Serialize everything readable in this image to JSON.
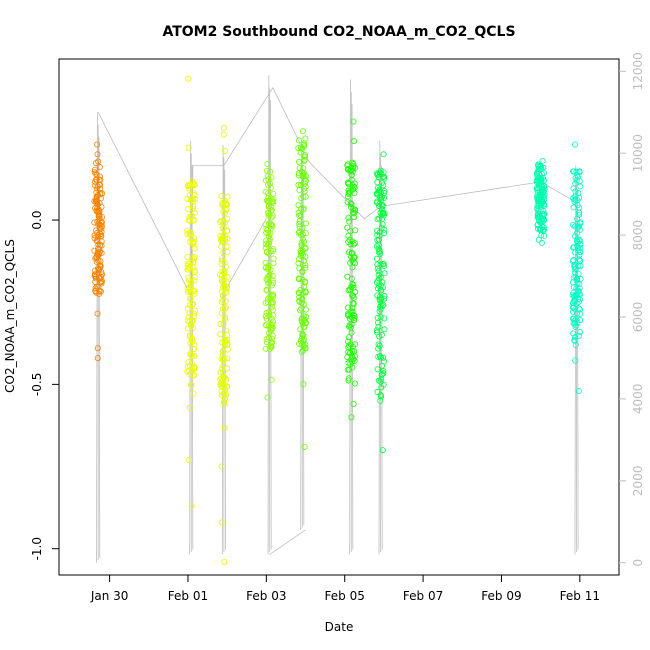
{
  "chart_data": {
    "type": "scatter",
    "title": "ATOM2 Southbound CO2_NOAA_m_CO2_QCLS",
    "xlabel": "Date",
    "ylabel": "CO2_NOAA_m_CO2_QCLS",
    "xlim": [
      "2017-01-28T17:00",
      "2017-02-12T00:00"
    ],
    "ylim": [
      -1.08,
      0.49
    ],
    "y2lim": [
      -300,
      12300
    ],
    "x_ticks": [
      {
        "at": "2017-01-30",
        "label": "Jan 30"
      },
      {
        "at": "2017-02-01",
        "label": "Feb 01"
      },
      {
        "at": "2017-02-03",
        "label": "Feb 03"
      },
      {
        "at": "2017-02-05",
        "label": "Feb 05"
      },
      {
        "at": "2017-02-07",
        "label": "Feb 07"
      },
      {
        "at": "2017-02-09",
        "label": "Feb 09"
      },
      {
        "at": "2017-02-11",
        "label": "Feb 11"
      }
    ],
    "y_ticks": [
      {
        "v": -1.0,
        "label": "-1.0"
      },
      {
        "v": -0.5,
        "label": "-0.5"
      },
      {
        "v": 0.0,
        "label": "0.0"
      }
    ],
    "y2_ticks": [
      {
        "v": 0,
        "label": "0"
      },
      {
        "v": 2000,
        "label": "2000"
      },
      {
        "v": 4000,
        "label": "4000"
      },
      {
        "v": 6000,
        "label": "6000"
      },
      {
        "v": 8000,
        "label": "8000"
      },
      {
        "v": 10000,
        "label": "10000"
      },
      {
        "v": 12000,
        "label": "12000"
      }
    ],
    "grid": false,
    "flights": [
      {
        "time": "2017-01-29T17:00",
        "color": "#f58300",
        "ymin": -0.42,
        "ymax": 0.23,
        "core_min": -0.3,
        "core_max": 0.18,
        "outliers": [
          0.23,
          0.2,
          -0.42,
          -0.39
        ]
      },
      {
        "time": "2017-02-01T02:00",
        "color": "#ebff00",
        "ymin": -0.87,
        "ymax": 0.43,
        "core_min": -0.58,
        "core_max": 0.13,
        "outliers": [
          0.43,
          0.22,
          -0.73,
          -0.87
        ]
      },
      {
        "time": "2017-02-01T22:00",
        "color": "#e2ff00",
        "ymin": -1.04,
        "ymax": 0.28,
        "core_min": -0.67,
        "core_max": 0.09,
        "outliers": [
          0.28,
          0.26,
          0.21,
          -0.75,
          -0.92,
          -1.04
        ]
      },
      {
        "time": "2017-02-03T02:00",
        "color": "#8dff00",
        "ymin": -0.54,
        "ymax": 0.17,
        "core_min": -0.49,
        "core_max": 0.15,
        "outliers": [
          0.17,
          -0.54
        ]
      },
      {
        "time": "2017-02-03T22:00",
        "color": "#66ff00",
        "ymin": -0.69,
        "ymax": 0.27,
        "core_min": -0.52,
        "core_max": 0.25,
        "outliers": [
          0.27,
          -0.69
        ]
      },
      {
        "time": "2017-02-05T04:00",
        "color": "#1cff00",
        "ymin": -0.6,
        "ymax": 0.3,
        "core_min": -0.57,
        "core_max": 0.18,
        "outliers": [
          0.3,
          0.24,
          -0.6
        ]
      },
      {
        "time": "2017-02-05T22:00",
        "color": "#00ff3f",
        "ymin": -0.7,
        "ymax": 0.2,
        "core_min": -0.62,
        "core_max": 0.16,
        "outliers": [
          0.2,
          -0.7
        ]
      },
      {
        "time": "2017-02-10T00:00",
        "color": "#00ffad",
        "ymin": -0.08,
        "ymax": 0.18,
        "core_min": -0.07,
        "core_max": 0.17,
        "outliers": [
          0.18
        ]
      },
      {
        "time": "2017-02-10T22:00",
        "color": "#00ffc4",
        "ymin": -0.52,
        "ymax": 0.23,
        "core_min": -0.46,
        "core_max": 0.15,
        "outliers": [
          0.23,
          -0.52
        ]
      }
    ],
    "altitude_series": {
      "color": "#bdbdbd",
      "axis": "right",
      "vertical_profiles": [
        {
          "time": "2017-01-29T17:00",
          "lo": 0,
          "hi": 11000
        },
        {
          "time": "2017-02-01T02:00",
          "lo": 200,
          "hi": 10300
        },
        {
          "time": "2017-02-01T22:00",
          "lo": 200,
          "hi": 10200
        },
        {
          "time": "2017-02-03T02:00",
          "lo": 200,
          "hi": 11900
        },
        {
          "time": "2017-02-03T22:00",
          "lo": 800,
          "hi": 10200
        },
        {
          "time": "2017-02-05T04:00",
          "lo": 200,
          "hi": 11800
        },
        {
          "time": "2017-02-05T22:00",
          "lo": 200,
          "hi": 10300
        },
        {
          "time": "2017-02-10T22:00",
          "lo": 200,
          "hi": 9700
        }
      ],
      "path": [
        [
          "2017-01-29T17:00",
          11000
        ],
        [
          "2017-02-01T02:00",
          6500
        ],
        [
          "2017-02-01T03:00",
          9700
        ],
        [
          "2017-02-01T22:00",
          9700
        ],
        [
          "2017-02-03T04:00",
          11600
        ],
        [
          "2017-02-04T02:00",
          9800
        ],
        [
          "2017-02-05T12:00",
          8400
        ],
        [
          "2017-02-05T22:00",
          8700
        ],
        [
          "2017-02-10T00:00",
          9300
        ],
        [
          "2017-02-10T22:00",
          8800
        ]
      ],
      "segments": [
        [
          [
            "2017-02-03T02:00",
            200
          ],
          [
            "2017-02-04T00:00",
            800
          ]
        ],
        [
          [
            "2017-02-01T22:00",
            6600
          ],
          [
            "2017-02-03T00:00",
            8400
          ]
        ]
      ]
    }
  }
}
